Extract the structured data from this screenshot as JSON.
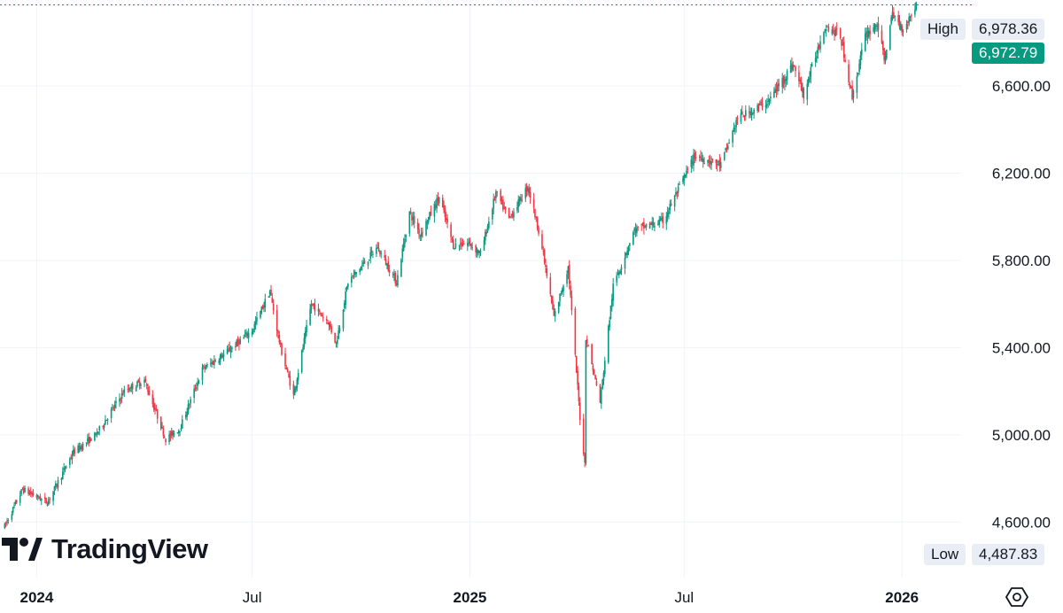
{
  "brand": {
    "name": "TradingView",
    "logo_icon": "tradingview-logo-icon"
  },
  "chart_data": {
    "type": "candlestick",
    "y_ticks": [
      4600,
      5000,
      5400,
      5800,
      6200,
      6600
    ],
    "y_tick_labels": [
      "4,600.00",
      "5,000.00",
      "5,400.00",
      "5,800.00",
      "6,200.00",
      "6,600.00"
    ],
    "x_ticks": [
      {
        "label": "2024",
        "date": "2024-01",
        "bold": true
      },
      {
        "label": "Jul",
        "date": "2024-07",
        "bold": false
      },
      {
        "label": "2025",
        "date": "2025-01",
        "bold": true
      },
      {
        "label": "Jul",
        "date": "2025-07",
        "bold": false
      },
      {
        "label": "2026",
        "date": "2026-01",
        "bold": true
      }
    ],
    "x_start": "2023-12-01",
    "x_end": "2026-02-20",
    "last_date": "2026-01-13",
    "ylim": [
      4345,
      6995
    ],
    "high_label": "High",
    "high_value": "6,978.36",
    "low_label": "Low",
    "low_value": "4,487.83",
    "last_price": "6,972.79",
    "last_price_value": 6972.79,
    "path": [
      [
        "2023-12-05",
        4580
      ],
      [
        "2023-12-20",
        4750
      ],
      [
        "2024-01-10",
        4690
      ],
      [
        "2024-02-01",
        4920
      ],
      [
        "2024-02-20",
        5000
      ],
      [
        "2024-03-15",
        5200
      ],
      [
        "2024-04-01",
        5250
      ],
      [
        "2024-04-19",
        4980
      ],
      [
        "2024-05-01",
        5030
      ],
      [
        "2024-05-20",
        5300
      ],
      [
        "2024-06-10",
        5380
      ],
      [
        "2024-07-01",
        5480
      ],
      [
        "2024-07-16",
        5660
      ],
      [
        "2024-07-25",
        5400
      ],
      [
        "2024-08-05",
        5180
      ],
      [
        "2024-08-20",
        5600
      ],
      [
        "2024-09-03",
        5520
      ],
      [
        "2024-09-10",
        5420
      ],
      [
        "2024-09-20",
        5700
      ],
      [
        "2024-10-15",
        5860
      ],
      [
        "2024-10-31",
        5700
      ],
      [
        "2024-11-11",
        6020
      ],
      [
        "2024-11-20",
        5920
      ],
      [
        "2024-12-06",
        6090
      ],
      [
        "2024-12-18",
        5870
      ],
      [
        "2024-12-31",
        5880
      ],
      [
        "2025-01-10",
        5830
      ],
      [
        "2025-01-23",
        6110
      ],
      [
        "2025-02-03",
        5990
      ],
      [
        "2025-02-19",
        6140
      ],
      [
        "2025-03-01",
        5920
      ],
      [
        "2025-03-13",
        5540
      ],
      [
        "2025-03-25",
        5770
      ],
      [
        "2025-04-04",
        5080
      ],
      [
        "2025-04-08",
        4870
      ],
      [
        "2025-04-09",
        5450
      ],
      [
        "2025-04-21",
        5150
      ],
      [
        "2025-05-02",
        5680
      ],
      [
        "2025-05-20",
        5940
      ],
      [
        "2025-06-13",
        5980
      ],
      [
        "2025-07-10",
        6280
      ],
      [
        "2025-08-01",
        6240
      ],
      [
        "2025-08-15",
        6450
      ],
      [
        "2025-09-10",
        6530
      ],
      [
        "2025-10-01",
        6700
      ],
      [
        "2025-10-10",
        6560
      ],
      [
        "2025-10-28",
        6880
      ],
      [
        "2025-11-10",
        6830
      ],
      [
        "2025-11-20",
        6550
      ],
      [
        "2025-12-01",
        6830
      ],
      [
        "2025-12-11",
        6890
      ],
      [
        "2025-12-17",
        6720
      ],
      [
        "2025-12-24",
        6930
      ],
      [
        "2026-01-02",
        6860
      ],
      [
        "2026-01-13",
        6972.79
      ]
    ]
  }
}
